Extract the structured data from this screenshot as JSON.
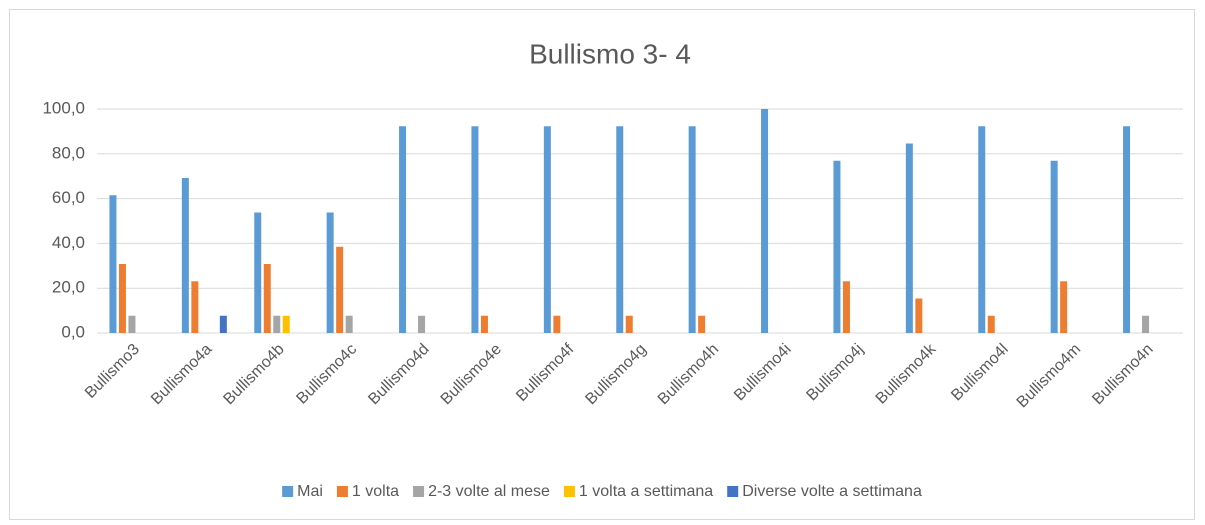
{
  "chart_data": {
    "type": "bar",
    "title": "Bullismo 3- 4",
    "categories": [
      "Bullismo3",
      "Bullismo4a",
      "Bullismo4b",
      "Bullismo4c",
      "Bullismo4d",
      "Bullismo4e",
      "Bullismo4f",
      "Bullismo4g",
      "Bullismo4h",
      "Bullismo4i",
      "Bullismo4j",
      "Bullismo4k",
      "Bullismo4l",
      "Bullismo4m",
      "Bullismo4n"
    ],
    "series": [
      {
        "name": "Mai",
        "color": "#5b9bd5",
        "values": [
          61.5,
          69.2,
          53.8,
          53.8,
          92.3,
          92.3,
          92.3,
          92.3,
          92.3,
          100,
          76.9,
          84.6,
          92.3,
          76.9,
          92.3
        ]
      },
      {
        "name": "1 volta",
        "color": "#ed7d31",
        "values": [
          30.8,
          23.1,
          30.8,
          38.5,
          0,
          7.7,
          7.7,
          7.7,
          7.7,
          0,
          23.1,
          15.4,
          7.7,
          23.1,
          0
        ]
      },
      {
        "name": "2-3 volte al mese",
        "color": "#a5a5a5",
        "values": [
          7.7,
          0,
          7.7,
          7.7,
          7.7,
          0,
          0,
          0,
          0,
          0,
          0,
          0,
          0,
          0,
          7.7
        ]
      },
      {
        "name": "1 volta a settimana",
        "color": "#ffc000",
        "values": [
          0,
          0,
          7.7,
          0,
          0,
          0,
          0,
          0,
          0,
          0,
          0,
          0,
          0,
          0,
          0
        ]
      },
      {
        "name": "Diverse volte a settimana",
        "color": "#4472c4",
        "values": [
          0,
          7.7,
          0,
          0,
          0,
          0,
          0,
          0,
          0,
          0,
          0,
          0,
          0,
          0,
          0
        ]
      }
    ],
    "ylim": [
      0,
      100
    ],
    "yticks": [
      {
        "value": 0,
        "label": "0,0"
      },
      {
        "value": 20,
        "label": "20,0"
      },
      {
        "value": 40,
        "label": "40,0"
      },
      {
        "value": 60,
        "label": "60,0"
      },
      {
        "value": 80,
        "label": "80,0"
      },
      {
        "value": 100,
        "label": "100,0"
      }
    ],
    "grid": true,
    "legend": "bottom"
  }
}
